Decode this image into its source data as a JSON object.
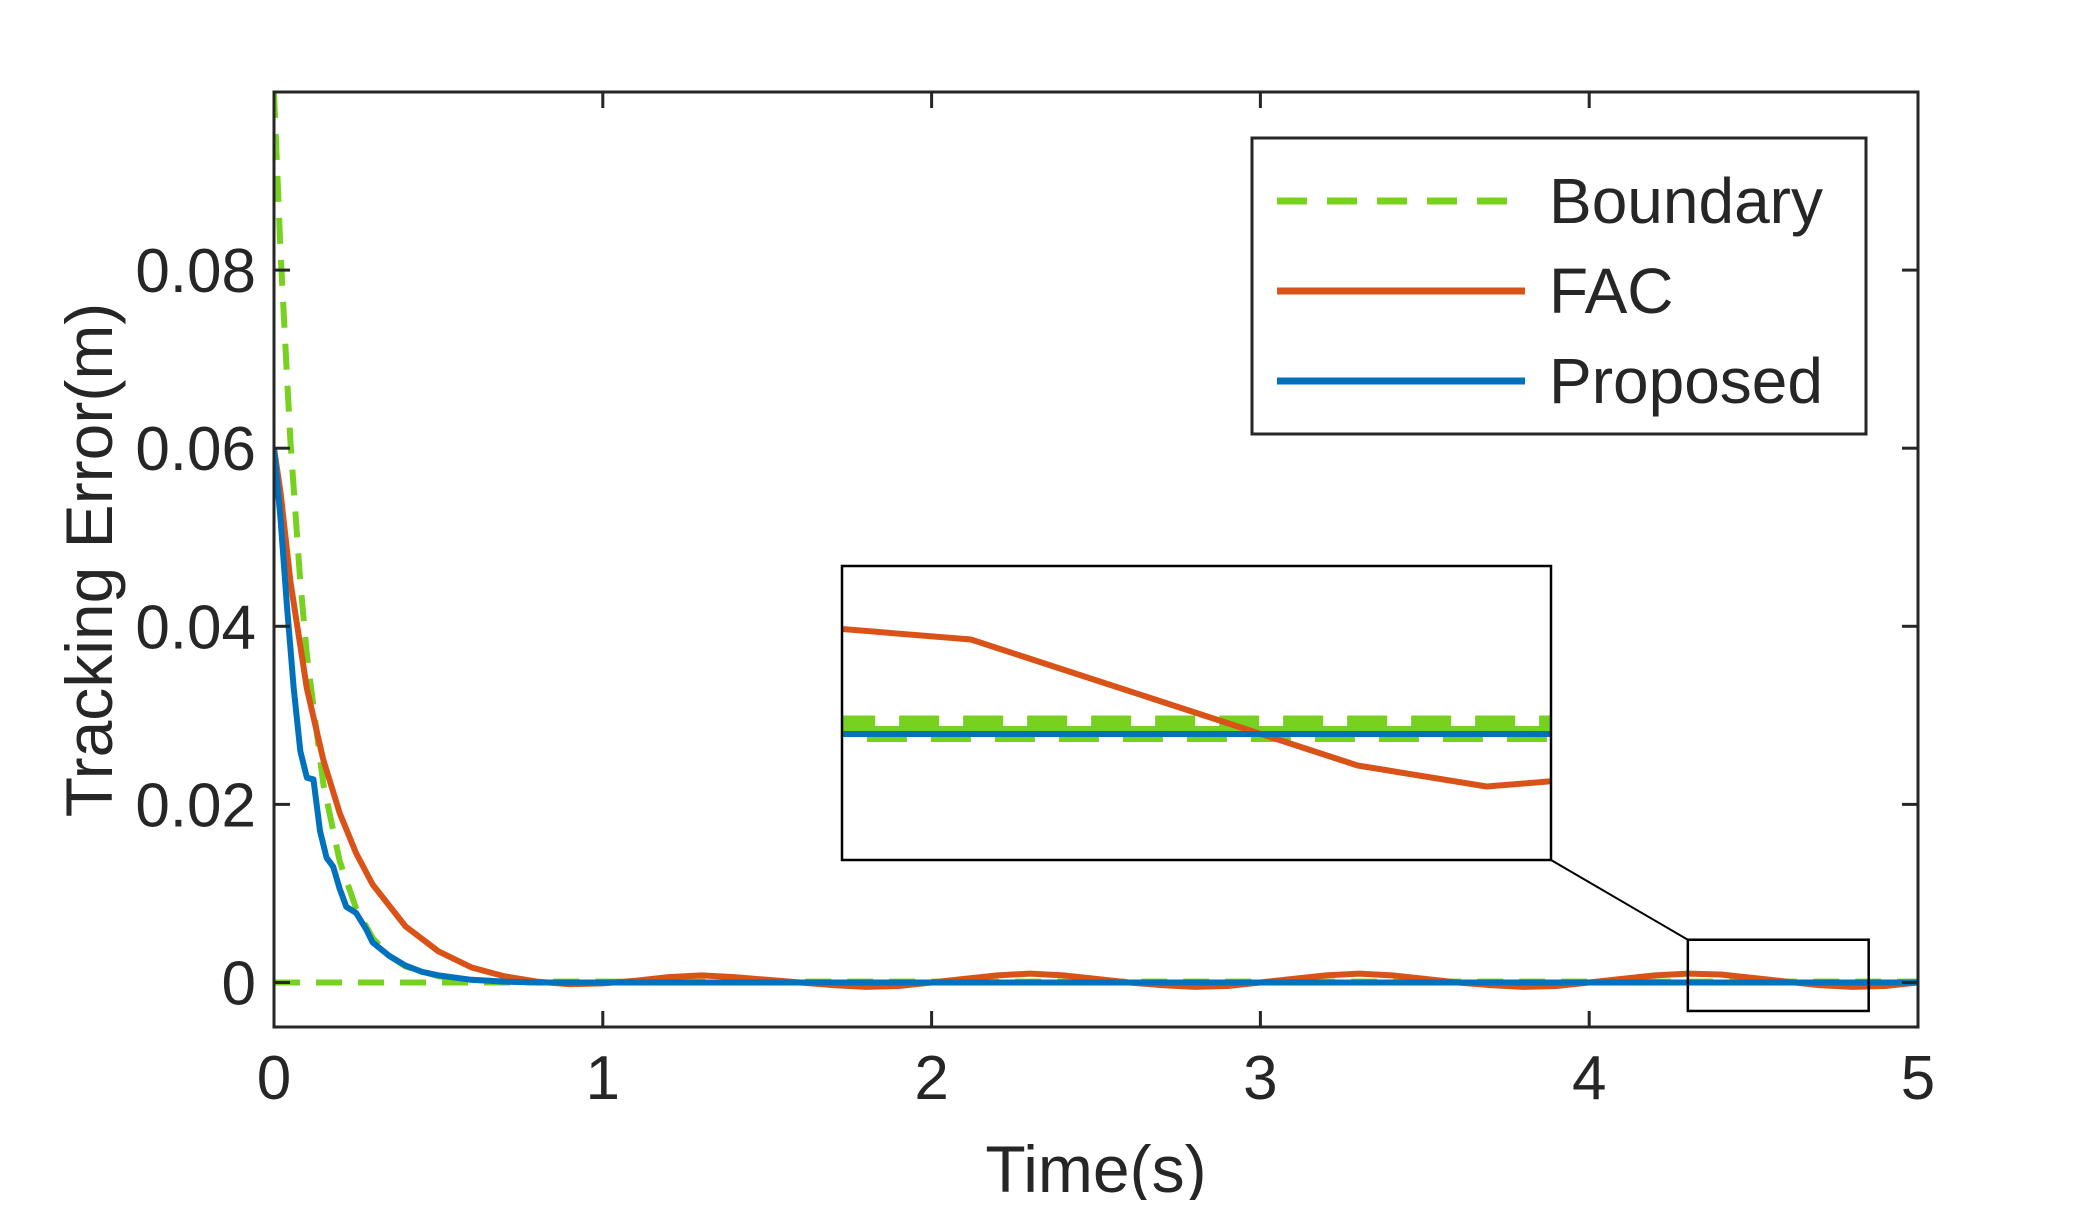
{
  "chart_data": {
    "type": "line",
    "xlabel": "Time(s)",
    "ylabel": "Tracking Error(m)",
    "xlim": [
      0,
      5
    ],
    "ylim": [
      -0.005,
      0.1
    ],
    "x_ticks": [
      0,
      1,
      2,
      3,
      4,
      5
    ],
    "x_tick_labels": [
      "0",
      "1",
      "2",
      "3",
      "4",
      "5"
    ],
    "y_ticks": [
      0,
      0.02,
      0.04,
      0.06,
      0.08
    ],
    "y_tick_labels": [
      "0",
      "0.02",
      "0.04",
      "0.06",
      "0.08"
    ],
    "grid": false,
    "legend_position": "top-right",
    "series": [
      {
        "name": "Boundary",
        "style": "dashed",
        "color": "#77d11f",
        "x": [
          0,
          0.02,
          0.05,
          0.08,
          0.1,
          0.15,
          0.2,
          0.25,
          0.3,
          0.35,
          0.4,
          0.5,
          0.6,
          0.7,
          0.8,
          1.0,
          1.5,
          2.0,
          3.0,
          4.0,
          5.0
        ],
        "y": [
          0.1,
          0.0819,
          0.0607,
          0.045,
          0.0368,
          0.0223,
          0.0136,
          0.0083,
          0.005,
          0.003,
          0.0018,
          0.0007,
          0.0003,
          0.0001,
          0.0001,
          0.0001,
          0.0001,
          0.0001,
          0.0001,
          0.0001,
          0.0001
        ]
      },
      {
        "name": "Boundary (lower)",
        "style": "dashed",
        "color": "#77d11f",
        "x": [
          0,
          0.5,
          1.0,
          1.5,
          2.0,
          3.0,
          4.0,
          5.0
        ],
        "y": [
          0,
          0,
          0,
          0,
          0,
          0,
          0,
          0
        ]
      },
      {
        "name": "FAC",
        "style": "solid",
        "color": "#d95319",
        "x": [
          0,
          0.02,
          0.05,
          0.1,
          0.15,
          0.2,
          0.25,
          0.3,
          0.4,
          0.5,
          0.6,
          0.7,
          0.8,
          0.9,
          1.0,
          1.1,
          1.2,
          1.3,
          1.4,
          1.5,
          1.6,
          1.7,
          1.8,
          1.9,
          2.0,
          2.1,
          2.2,
          2.3,
          2.4,
          2.5,
          2.6,
          2.7,
          2.8,
          2.9,
          3.0,
          3.1,
          3.2,
          3.3,
          3.4,
          3.5,
          3.6,
          3.7,
          3.8,
          3.9,
          4.0,
          4.1,
          4.2,
          4.3,
          4.4,
          4.5,
          4.6,
          4.7,
          4.8,
          4.9,
          5.0
        ],
        "y": [
          0.06,
          0.055,
          0.045,
          0.033,
          0.025,
          0.019,
          0.0145,
          0.011,
          0.0063,
          0.0035,
          0.0017,
          0.0007,
          0.0001,
          -0.0002,
          -0.0001,
          0.0002,
          0.0006,
          0.0008,
          0.0006,
          0.0003,
          0.0,
          -0.0003,
          -0.0005,
          -0.0004,
          0.0,
          0.0004,
          0.0008,
          0.001,
          0.0008,
          0.0004,
          0.0,
          -0.0003,
          -0.0005,
          -0.0004,
          0.0,
          0.0004,
          0.0008,
          0.001,
          0.0008,
          0.0004,
          0.0,
          -0.0003,
          -0.0005,
          -0.0004,
          0.0,
          0.0004,
          0.0008,
          0.001,
          0.0009,
          0.0005,
          0.0001,
          -0.0003,
          -0.0005,
          -0.0004,
          0.0
        ]
      },
      {
        "name": "Proposed",
        "style": "solid",
        "color": "#0072bd",
        "x": [
          0,
          0.02,
          0.04,
          0.06,
          0.08,
          0.1,
          0.12,
          0.14,
          0.16,
          0.18,
          0.2,
          0.22,
          0.25,
          0.28,
          0.3,
          0.35,
          0.4,
          0.45,
          0.5,
          0.6,
          0.7,
          0.8,
          1.0,
          1.5,
          2.0,
          3.0,
          4.0,
          5.0
        ],
        "y": [
          0.06,
          0.052,
          0.042,
          0.033,
          0.026,
          0.023,
          0.0228,
          0.017,
          0.014,
          0.013,
          0.0105,
          0.0085,
          0.0078,
          0.006,
          0.0045,
          0.003,
          0.0019,
          0.0012,
          0.0008,
          0.0003,
          0.0001,
          0.0,
          0.0,
          0.0,
          0.0,
          0.0,
          0.0,
          0.0
        ]
      }
    ],
    "inset": {
      "xlim": [
        4.3,
        4.85
      ],
      "source_box_ylim": [
        -0.0032,
        0.0048
      ],
      "note": "magnified view of the region near x≈4.3–4.85"
    }
  }
}
